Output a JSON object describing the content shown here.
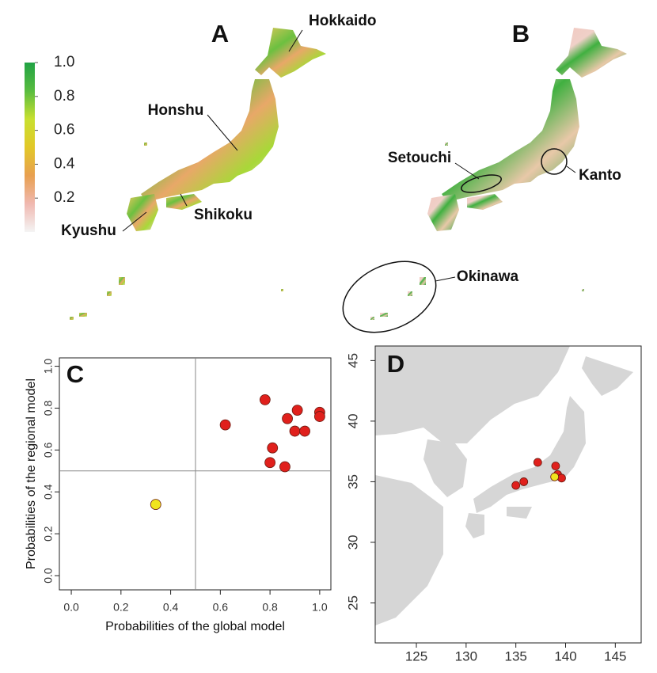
{
  "chart_data": [
    {
      "type": "map",
      "title": "A",
      "labels": [
        "Hokkaido",
        "Honshu",
        "Shikoku",
        "Kyushu"
      ],
      "colorbar": {
        "ylim": [
          0,
          1
        ],
        "yticks": [
          0.2,
          0.4,
          0.6,
          0.8,
          {
            "value": 1,
            "label": "1.0"
          }
        ],
        "colors": [
          "#f4f4f4",
          "#f0b8b0",
          "#e8a050",
          "#e2c828",
          "#c8e030",
          "#58bc40",
          "#21a244"
        ]
      }
    },
    {
      "type": "map",
      "title": "B",
      "labels": [
        "Setouchi",
        "Kanto",
        "Okinawa"
      ]
    },
    {
      "type": "scatter",
      "title": "C",
      "x_label": "Probabilities of the global model",
      "y_label": "Probabilities of the regional model",
      "xlim": [
        -0.048,
        1.045
      ],
      "ylim": [
        -0.068,
        1.04
      ],
      "xticks": [
        {
          "value": 0,
          "label": "0.0"
        },
        0.2,
        0.4,
        0.6,
        0.8,
        {
          "value": 1,
          "label": "1.0"
        }
      ],
      "yticks": [
        {
          "value": 0,
          "label": "0.0"
        },
        0.2,
        0.4,
        0.6,
        0.8,
        {
          "value": 1,
          "label": "1.0"
        }
      ],
      "reference_lines": [
        0.5
      ],
      "series": [
        {
          "color": "#e0201c",
          "x": [
            0.78,
            0.91,
            1.0,
            1.0,
            0.87,
            0.62,
            0.9,
            0.94,
            0.81,
            0.8,
            0.86
          ],
          "y": [
            0.84,
            0.79,
            0.78,
            0.76,
            0.75,
            0.72,
            0.69,
            0.69,
            0.61,
            0.54,
            0.52
          ]
        },
        {
          "color": "#f0e41e",
          "x": [
            0.34
          ],
          "y": [
            0.34
          ]
        }
      ]
    },
    {
      "type": "scatter",
      "title": "D",
      "basemap": true,
      "xlim": [
        120.86,
        147.6
      ],
      "ylim": [
        21.7,
        46.2
      ],
      "xticks": [
        125,
        130,
        135,
        140,
        145
      ],
      "yticks": [
        25,
        30,
        35,
        40,
        45
      ],
      "series": [
        {
          "color": "#e0201c",
          "x": [
            135.0,
            135.8,
            137.2,
            139.0,
            139.2,
            139.6
          ],
          "y": [
            34.7,
            35.0,
            36.6,
            36.3,
            35.6,
            35.3
          ]
        },
        {
          "color": "#f0e41e",
          "x": [
            138.9
          ],
          "y": [
            35.4
          ]
        }
      ]
    }
  ]
}
